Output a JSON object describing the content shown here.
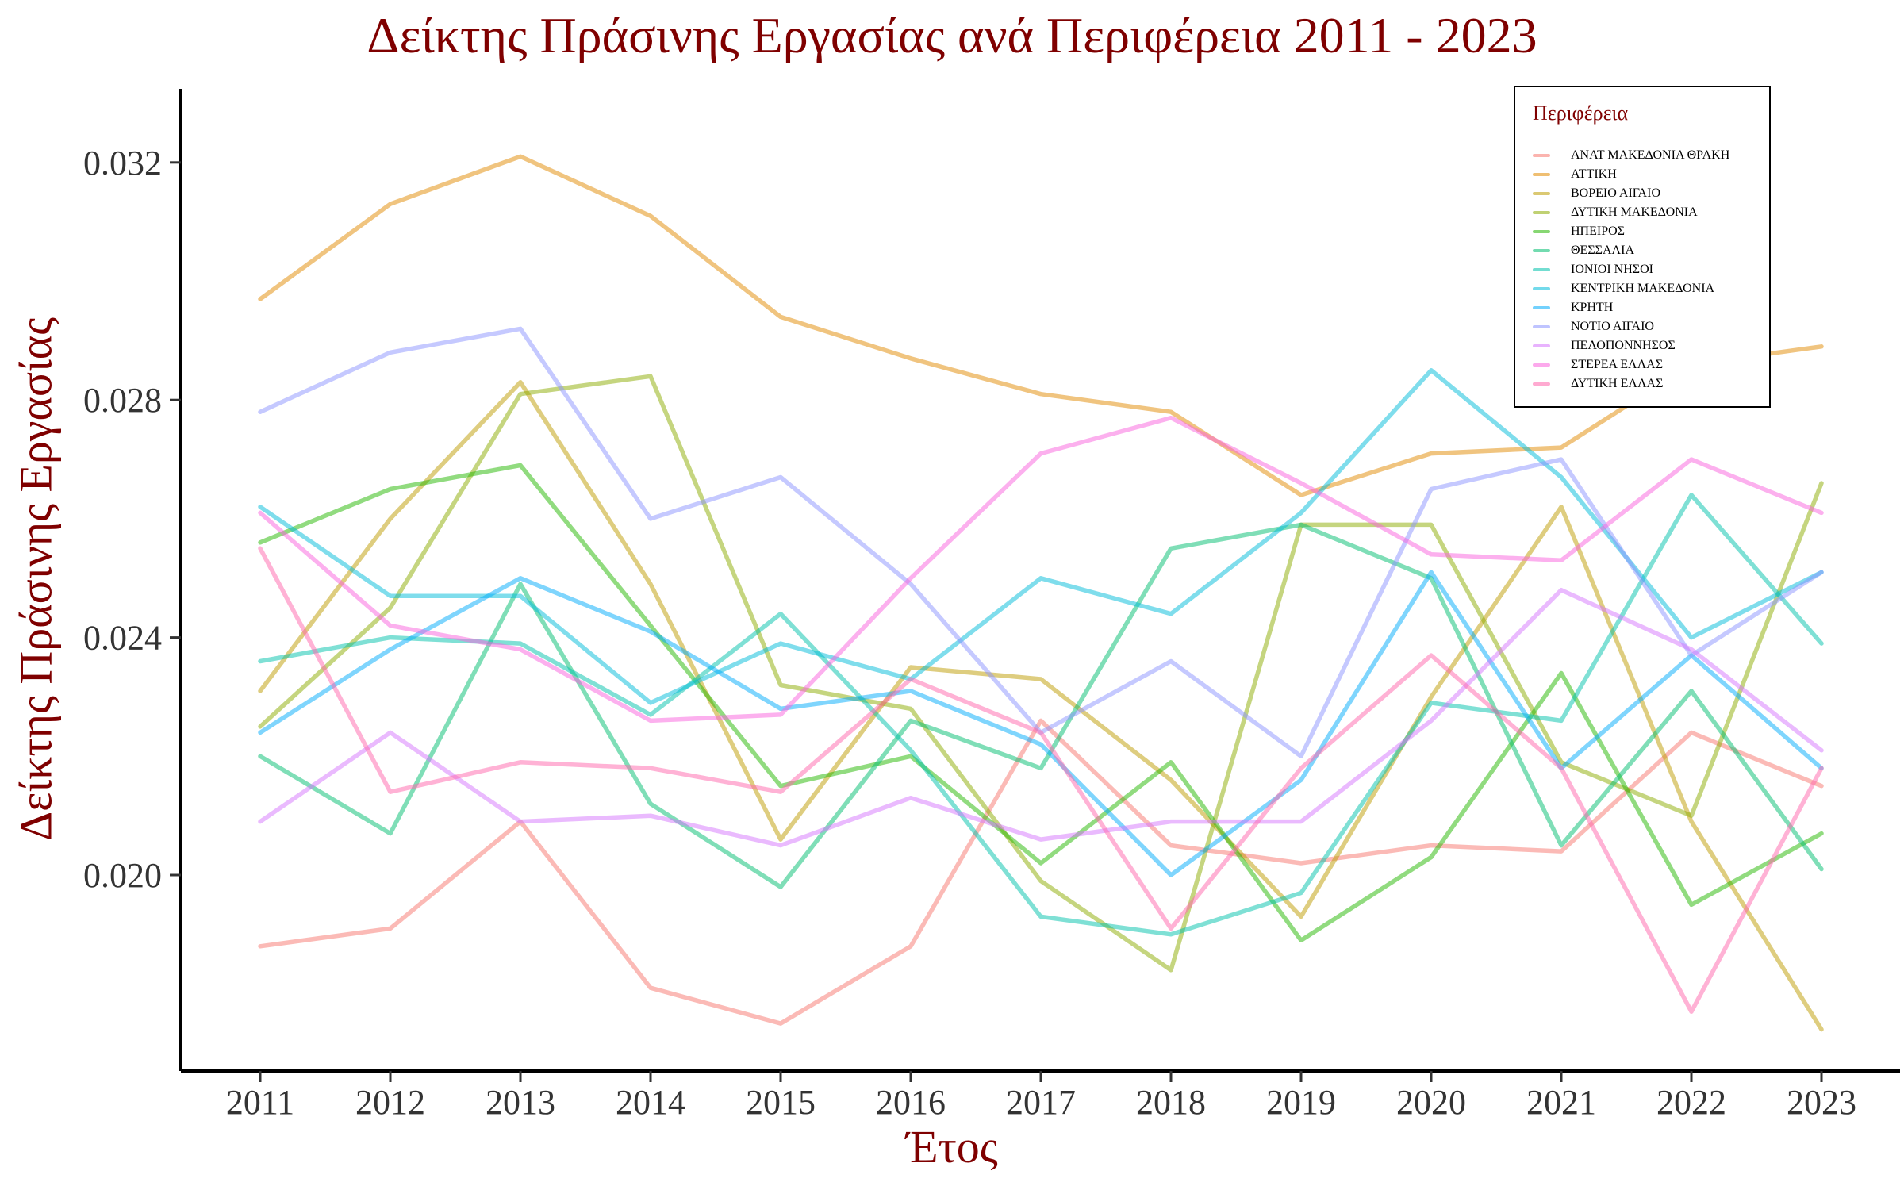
{
  "chart_data": {
    "type": "line",
    "title": "Δείκτης Πράσινης Εργασίας ανά Περιφέρεια 2011 - 2023",
    "xlabel": "Έτος",
    "ylabel": "Δείκτης Πράσινης Εργασίας",
    "x": [
      2011,
      2012,
      2013,
      2014,
      2015,
      2016,
      2017,
      2018,
      2019,
      2020,
      2021,
      2022,
      2023
    ],
    "ylim": [
      0.0167,
      0.0332
    ],
    "yticks": [
      0.02,
      0.024,
      0.028,
      0.032
    ],
    "ytick_labels": [
      "0.020",
      "0.024",
      "0.028",
      "0.032"
    ],
    "grid": false,
    "legend_title": "Περιφέρεια",
    "legend_position": "top-right",
    "series": [
      {
        "name": "ΑΝΑΤ ΜΑΚΕΔΟΝΙΑ ΘΡΑΚΗ",
        "color": "#F8766D",
        "values": [
          0.0188,
          0.0191,
          0.0209,
          0.0181,
          0.0175,
          0.0188,
          0.0226,
          0.0205,
          0.0202,
          0.0205,
          0.0204,
          0.0224,
          0.0215
        ]
      },
      {
        "name": "ΑΤΤΙΚΗ",
        "color": "#E18A00",
        "values": [
          0.0297,
          0.0313,
          0.0321,
          0.0311,
          0.0294,
          0.0287,
          0.0281,
          0.0278,
          0.0264,
          0.0271,
          0.0272,
          0.0286,
          0.0289
        ]
      },
      {
        "name": "ΒΟΡΕΙΟ ΑΙΓΑΙΟ",
        "color": "#BE9C00",
        "values": [
          0.0231,
          0.026,
          0.0283,
          0.0249,
          0.0206,
          0.0235,
          0.0233,
          0.0216,
          0.0193,
          0.023,
          0.0262,
          0.0209,
          0.0174
        ]
      },
      {
        "name": "ΔΥΤΙΚΗ ΜΑΚΕΔΟΝΙΑ",
        "color": "#8CAB00",
        "values": [
          0.0225,
          0.0245,
          0.0281,
          0.0284,
          0.0232,
          0.0228,
          0.0199,
          0.0184,
          0.0259,
          0.0259,
          0.0219,
          0.021,
          0.0266
        ]
      },
      {
        "name": "ΗΠΕΙΡΟΣ",
        "color": "#24B700",
        "values": [
          0.0256,
          0.0265,
          0.0269,
          0.0242,
          0.0215,
          0.022,
          0.0202,
          0.0219,
          0.0189,
          0.0203,
          0.0234,
          0.0195,
          0.0207
        ]
      },
      {
        "name": "ΘΕΣΣΑΛΙΑ",
        "color": "#00BE70",
        "values": [
          0.022,
          0.0207,
          0.0249,
          0.0212,
          0.0198,
          0.0226,
          0.0218,
          0.0255,
          0.0259,
          0.025,
          0.0205,
          0.0231,
          0.0201
        ]
      },
      {
        "name": "ΙΟΝΙΟΙ ΝΗΣΟΙ",
        "color": "#00C1AB",
        "values": [
          0.0236,
          0.024,
          0.0239,
          0.0227,
          0.0244,
          0.0221,
          0.0193,
          0.019,
          0.0197,
          0.0229,
          0.0226,
          0.0264,
          0.0239
        ]
      },
      {
        "name": "ΚΕΝΤΡΙΚΗ ΜΑΚΕΔΟΝΙΑ",
        "color": "#00BBDA",
        "values": [
          0.0262,
          0.0247,
          0.0247,
          0.0229,
          0.0239,
          0.0233,
          0.025,
          0.0244,
          0.0261,
          0.0285,
          0.0267,
          0.024,
          0.0251
        ]
      },
      {
        "name": "ΚΡΗΤΗ",
        "color": "#00ACFC",
        "values": [
          0.0224,
          0.0238,
          0.025,
          0.0241,
          0.0228,
          0.0231,
          0.0222,
          0.02,
          0.0216,
          0.0251,
          0.0218,
          0.0237,
          0.0218
        ]
      },
      {
        "name": "ΝΟΤΙΟ ΑΙΓΑΙΟ",
        "color": "#8B93FF",
        "values": [
          0.0278,
          0.0288,
          0.0292,
          0.026,
          0.0267,
          0.0249,
          0.0224,
          0.0236,
          0.022,
          0.0265,
          0.027,
          0.0237,
          0.0251
        ]
      },
      {
        "name": "ΠΕΛΟΠΟΝΝΗΣΟΣ",
        "color": "#D575FE",
        "values": [
          0.0209,
          0.0224,
          0.0209,
          0.021,
          0.0205,
          0.0213,
          0.0206,
          0.0209,
          0.0209,
          0.0226,
          0.0248,
          0.0238,
          0.0221
        ]
      },
      {
        "name": "ΣΤΕΡΕΑ ΕΛΛΑΣ",
        "color": "#F962DD",
        "values": [
          0.0261,
          0.0242,
          0.0238,
          0.0226,
          0.0227,
          0.025,
          0.0271,
          0.0277,
          0.0266,
          0.0254,
          0.0253,
          0.027,
          0.0261
        ]
      },
      {
        "name": "ΔΥΤΙΚΗ ΕΛΛΑΣ",
        "color": "#FF65AC",
        "values": [
          0.0255,
          0.0214,
          0.0219,
          0.0218,
          0.0214,
          0.0233,
          0.0224,
          0.0191,
          0.0218,
          0.0237,
          0.0218,
          0.0177,
          0.0218
        ]
      }
    ]
  }
}
